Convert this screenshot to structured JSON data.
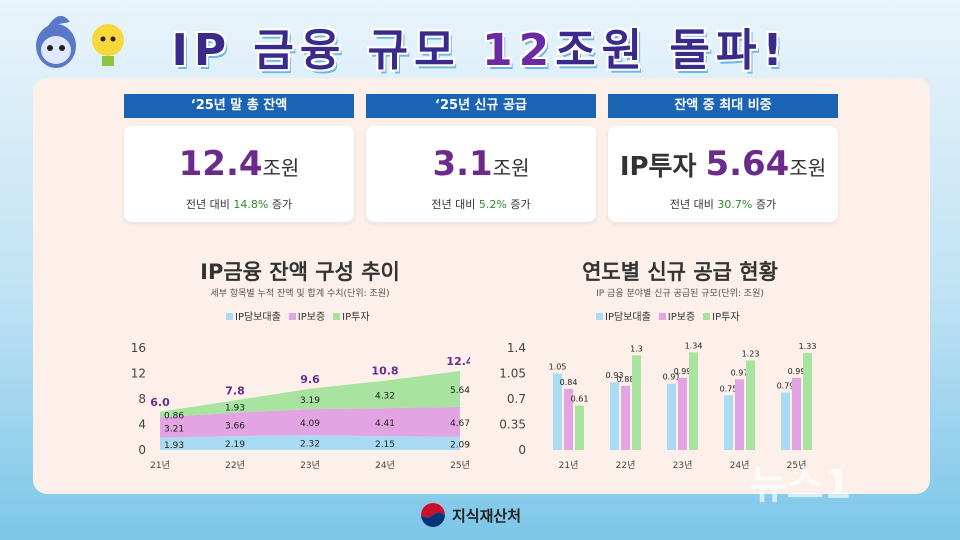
{
  "title": {
    "pre": "IP 금융 규모 ",
    "num": "12",
    "post": "조원 돌파!"
  },
  "stats": [
    {
      "header": "‘25년 말 총 잔액",
      "prefix": "",
      "value": "12.4",
      "unit": "조원",
      "note_pre": "전년 대비 ",
      "note_pct": "14.8%",
      "note_post": " 증가"
    },
    {
      "header": "‘25년 신규 공급",
      "prefix": "",
      "value": "3.1",
      "unit": "조원",
      "note_pre": "전년 대비 ",
      "note_pct": "5.2%",
      "note_post": " 증가"
    },
    {
      "header": "잔액 중 최대 비중",
      "prefix": "IP투자 ",
      "value": "5.64",
      "unit": "조원",
      "note_pre": "전년 대비 ",
      "note_pct": "30.7%",
      "note_post": " 증가"
    }
  ],
  "legend_labels": [
    "IP담보대출",
    "IP보증",
    "IP투자"
  ],
  "colors": {
    "loan": "#a9dcf4",
    "guarantee": "#e3a4e3",
    "invest": "#a8e3a0",
    "total": "#6b2a8c",
    "header": "#1b63b3"
  },
  "chart_data": [
    {
      "type": "area",
      "title": "IP금융 잔액 구성 추이",
      "subtitle": "세부 항목별 누적 잔액 및 합계 수치(단위: 조원)",
      "categories": [
        "21년",
        "22년",
        "23년",
        "24년",
        "25년"
      ],
      "stacked": true,
      "series": [
        {
          "name": "IP담보대출",
          "values": [
            1.93,
            2.19,
            2.32,
            2.15,
            2.09
          ]
        },
        {
          "name": "IP보증",
          "values": [
            3.21,
            3.66,
            4.09,
            4.41,
            4.67
          ]
        },
        {
          "name": "IP투자",
          "values": [
            0.86,
            1.93,
            3.19,
            4.32,
            5.64
          ]
        }
      ],
      "totals": [
        "6.0",
        "7.8",
        "9.6",
        "10.8",
        "12.4"
      ],
      "yticks": [
        "0",
        "4",
        "8",
        "12",
        "16"
      ],
      "ylim": [
        0,
        16
      ]
    },
    {
      "type": "bar",
      "title": "연도별 신규 공급 현황",
      "subtitle": "IP 금융 분야별 신규 공급된 규모(단위: 조원)",
      "categories": [
        "21년",
        "22년",
        "23년",
        "24년",
        "25년"
      ],
      "series": [
        {
          "name": "IP담보대출",
          "values": [
            1.05,
            0.93,
            0.91,
            0.75,
            0.79
          ]
        },
        {
          "name": "IP보증",
          "values": [
            0.84,
            0.88,
            0.99,
            0.97,
            0.99
          ]
        },
        {
          "name": "IP투자",
          "values": [
            0.61,
            1.3,
            1.34,
            1.23,
            1.33
          ]
        }
      ],
      "yticks": [
        "0",
        "0.35",
        "0.7",
        "1.05",
        "1.4"
      ],
      "ylim": [
        0,
        1.4
      ]
    }
  ],
  "footer": {
    "org": "지식재산처"
  },
  "watermark": "뉴스1"
}
